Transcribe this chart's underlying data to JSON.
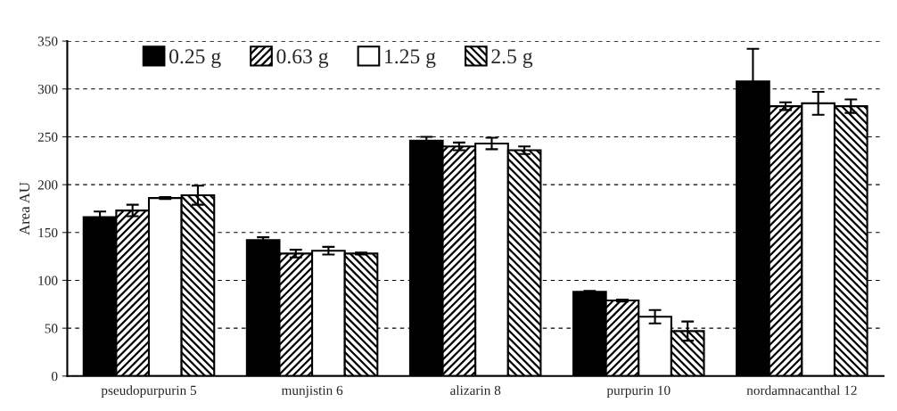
{
  "chart_data": {
    "type": "bar",
    "ylabel": "Area AU",
    "categories": [
      "pseudopurpurin 5",
      "munjistin 6",
      "alizarin 8",
      "purpurin 10",
      "nordamnacanthal 12"
    ],
    "series": [
      {
        "name": "0.25 g",
        "color": "#000000",
        "values": [
          166,
          142,
          246,
          88,
          308
        ],
        "errors": [
          6,
          3,
          4,
          1,
          34
        ]
      },
      {
        "name": "0.63 g",
        "color": "#000000",
        "values": [
          173,
          128,
          240,
          79,
          282
        ],
        "errors": [
          6,
          4,
          4,
          1,
          4
        ]
      },
      {
        "name": "1.25 g",
        "color": "#ffffff",
        "values": [
          186,
          131,
          243,
          62,
          285
        ],
        "errors": [
          1,
          4,
          6,
          7,
          12
        ]
      },
      {
        "name": "2.5 g",
        "color": "#000000",
        "values": [
          189,
          128,
          236,
          47,
          282
        ],
        "errors": [
          10,
          1,
          4,
          10,
          7
        ]
      }
    ],
    "ylim": [
      0,
      350
    ],
    "yticks": [
      0,
      50,
      100,
      150,
      200,
      250,
      300,
      350
    ],
    "grid": "y",
    "legend": "top left"
  }
}
